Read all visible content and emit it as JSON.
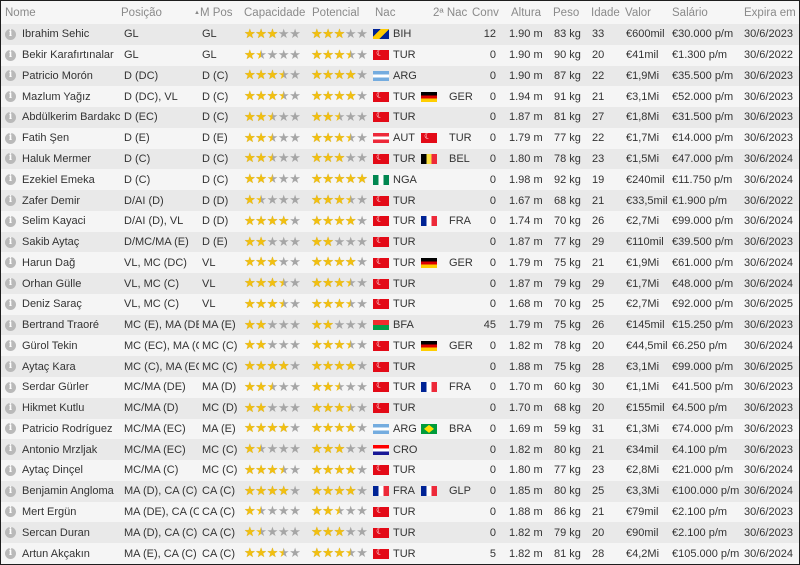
{
  "columns": {
    "nome": "Nome",
    "posicao": "Posição",
    "sort_arrow": "▲",
    "mpos": "M Pos",
    "capacidade": "Capacidade",
    "potencial": "Potencial",
    "nac": "Nac",
    "nac2": "2ª Nac",
    "conv": "Conv",
    "altura": "Altura",
    "peso": "Peso",
    "idade": "Idade",
    "valor": "Valor",
    "salario": "Salário",
    "expira": "Expira em"
  },
  "colors": {
    "star_filled": "#f2c010",
    "star_empty": "#a6a6a6"
  },
  "players": [
    {
      "nome": "Ibrahim Sehic",
      "posicao": "GL",
      "mpos": "GL",
      "capacidade": 3,
      "potencial": 3,
      "nac": "BIH",
      "nac_flag": "BIH",
      "nac2": "",
      "nac2_flag": "",
      "conv": "12",
      "altura": "1.90 m",
      "peso": "83 kg",
      "idade": "33",
      "valor": "€600mil",
      "salario": "€30.000 p/m",
      "expira": "30/6/2023"
    },
    {
      "nome": "Bekir Karafırtınalar",
      "posicao": "GL",
      "mpos": "GL",
      "capacidade": 1.5,
      "potencial": 3.5,
      "nac": "TUR",
      "nac_flag": "TUR",
      "nac2": "",
      "nac2_flag": "",
      "conv": "0",
      "altura": "1.90 m",
      "peso": "90 kg",
      "idade": "20",
      "valor": "€41mil",
      "salario": "€1.300 p/m",
      "expira": "30/6/2022"
    },
    {
      "nome": "Patricio Morón",
      "posicao": "D (DC)",
      "mpos": "D (C)",
      "capacidade": 3.5,
      "potencial": 4,
      "nac": "ARG",
      "nac_flag": "ARG",
      "nac2": "",
      "nac2_flag": "",
      "conv": "0",
      "altura": "1.90 m",
      "peso": "87 kg",
      "idade": "22",
      "valor": "€1,9Mi",
      "salario": "€35.500 p/m",
      "expira": "30/6/2023"
    },
    {
      "nome": "Mazlum Yağız",
      "posicao": "D (DC), VL",
      "mpos": "D (C)",
      "capacidade": 3.5,
      "potencial": 4,
      "nac": "TUR",
      "nac_flag": "TUR",
      "nac2": "GER",
      "nac2_flag": "GER",
      "conv": "0",
      "altura": "1.94 m",
      "peso": "91 kg",
      "idade": "21",
      "valor": "€3,1Mi",
      "salario": "€52.000 p/m",
      "expira": "30/6/2023"
    },
    {
      "nome": "Abdülkerim Bardakcı",
      "posicao": "D (EC)",
      "mpos": "D (C)",
      "capacidade": 2.5,
      "potencial": 2.5,
      "nac": "TUR",
      "nac_flag": "TUR",
      "nac2": "",
      "nac2_flag": "",
      "conv": "0",
      "altura": "1.87 m",
      "peso": "81 kg",
      "idade": "27",
      "valor": "€1,8Mi",
      "salario": "€31.500 p/m",
      "expira": "30/6/2023"
    },
    {
      "nome": "Fatih Şen",
      "posicao": "D (E)",
      "mpos": "D (E)",
      "capacidade": 2.5,
      "potencial": 3.5,
      "nac": "AUT",
      "nac_flag": "AUT",
      "nac2": "TUR",
      "nac2_flag": "TUR",
      "conv": "0",
      "altura": "1.79 m",
      "peso": "77 kg",
      "idade": "22",
      "valor": "€1,7Mi",
      "salario": "€14.000 p/m",
      "expira": "30/6/2023"
    },
    {
      "nome": "Haluk Mermer",
      "posicao": "D (C)",
      "mpos": "D (C)",
      "capacidade": 2.5,
      "potencial": 3,
      "nac": "TUR",
      "nac_flag": "TUR",
      "nac2": "BEL",
      "nac2_flag": "BEL",
      "conv": "0",
      "altura": "1.80 m",
      "peso": "78 kg",
      "idade": "23",
      "valor": "€1,5Mi",
      "salario": "€47.000 p/m",
      "expira": "30/6/2024"
    },
    {
      "nome": "Ezekiel Emeka",
      "posicao": "D (C)",
      "mpos": "D (C)",
      "capacidade": 2.5,
      "potencial": 5,
      "nac": "NGA",
      "nac_flag": "NGA",
      "nac2": "",
      "nac2_flag": "",
      "conv": "0",
      "altura": "1.98 m",
      "peso": "92 kg",
      "idade": "19",
      "valor": "€240mil",
      "salario": "€11.750 p/m",
      "expira": "30/6/2024"
    },
    {
      "nome": "Zafer Demir",
      "posicao": "D/AI (D)",
      "mpos": "D (D)",
      "capacidade": 1.5,
      "potencial": 3.5,
      "nac": "TUR",
      "nac_flag": "TUR",
      "nac2": "",
      "nac2_flag": "",
      "conv": "0",
      "altura": "1.67 m",
      "peso": "68 kg",
      "idade": "21",
      "valor": "€33,5mil",
      "salario": "€1.900 p/m",
      "expira": "30/6/2022"
    },
    {
      "nome": "Selim Kayaci",
      "posicao": "D/AI (D), VL",
      "mpos": "D (D)",
      "capacidade": 4,
      "potencial": 4,
      "nac": "TUR",
      "nac_flag": "TUR",
      "nac2": "FRA",
      "nac2_flag": "FRA",
      "conv": "0",
      "altura": "1.74 m",
      "peso": "70 kg",
      "idade": "26",
      "valor": "€2,7Mi",
      "salario": "€99.000 p/m",
      "expira": "30/6/2024"
    },
    {
      "nome": "Sakib Aytaç",
      "posicao": "D/MC/MA (E)",
      "mpos": "D (E)",
      "capacidade": 2,
      "potencial": 2,
      "nac": "TUR",
      "nac_flag": "TUR",
      "nac2": "",
      "nac2_flag": "",
      "conv": "0",
      "altura": "1.87 m",
      "peso": "77 kg",
      "idade": "29",
      "valor": "€110mil",
      "salario": "€39.500 p/m",
      "expira": "30/6/2023"
    },
    {
      "nome": "Harun Dağ",
      "posicao": "VL, MC (DC)",
      "mpos": "VL",
      "capacidade": 3,
      "potencial": 4,
      "nac": "TUR",
      "nac_flag": "TUR",
      "nac2": "GER",
      "nac2_flag": "GER",
      "conv": "0",
      "altura": "1.79 m",
      "peso": "75 kg",
      "idade": "21",
      "valor": "€1,9Mi",
      "salario": "€61.000 p/m",
      "expira": "30/6/2024"
    },
    {
      "nome": "Orhan Gülle",
      "posicao": "VL, MC (C)",
      "mpos": "VL",
      "capacidade": 3.5,
      "potencial": 3.5,
      "nac": "TUR",
      "nac_flag": "TUR",
      "nac2": "",
      "nac2_flag": "",
      "conv": "0",
      "altura": "1.87 m",
      "peso": "79 kg",
      "idade": "29",
      "valor": "€1,7Mi",
      "salario": "€48.000 p/m",
      "expira": "30/6/2024"
    },
    {
      "nome": "Deniz Saraç",
      "posicao": "VL, MC (C)",
      "mpos": "VL",
      "capacidade": 3.5,
      "potencial": 3.5,
      "nac": "TUR",
      "nac_flag": "TUR",
      "nac2": "",
      "nac2_flag": "",
      "conv": "0",
      "altura": "1.68 m",
      "peso": "70 kg",
      "idade": "25",
      "valor": "€2,7Mi",
      "salario": "€92.000 p/m",
      "expira": "30/6/2025"
    },
    {
      "nome": "Bertrand Traoré",
      "posicao": "MC (E), MA (DE)",
      "mpos": "MA (E)",
      "capacidade": 2,
      "potencial": 2,
      "nac": "BFA",
      "nac_flag": "BFA",
      "nac2": "",
      "nac2_flag": "",
      "conv": "45",
      "altura": "1.79 m",
      "peso": "75 kg",
      "idade": "26",
      "valor": "€145mil",
      "salario": "€15.250 p/m",
      "expira": "30/6/2023"
    },
    {
      "nome": "Gürol Tekin",
      "posicao": "MC (EC), MA (C)",
      "mpos": "MC (C)",
      "capacidade": 2,
      "potencial": 3.5,
      "nac": "TUR",
      "nac_flag": "TUR",
      "nac2": "GER",
      "nac2_flag": "GER",
      "conv": "0",
      "altura": "1.82 m",
      "peso": "78 kg",
      "idade": "20",
      "valor": "€44,5mil",
      "salario": "€6.250 p/m",
      "expira": "30/6/2024"
    },
    {
      "nome": "Aytaç Kara",
      "posicao": "MC (C), MA (EC)",
      "mpos": "MC (C)",
      "capacidade": 4,
      "potencial": 4,
      "nac": "TUR",
      "nac_flag": "TUR",
      "nac2": "",
      "nac2_flag": "",
      "conv": "0",
      "altura": "1.88 m",
      "peso": "75 kg",
      "idade": "28",
      "valor": "€3,1Mi",
      "salario": "€99.000 p/m",
      "expira": "30/6/2025"
    },
    {
      "nome": "Serdar Gürler",
      "posicao": "MC/MA (DE)",
      "mpos": "MA (D)",
      "capacidade": 2.5,
      "potencial": 2.5,
      "nac": "TUR",
      "nac_flag": "TUR",
      "nac2": "FRA",
      "nac2_flag": "FRA",
      "conv": "0",
      "altura": "1.70 m",
      "peso": "60 kg",
      "idade": "30",
      "valor": "€1,1Mi",
      "salario": "€41.500 p/m",
      "expira": "30/6/2023"
    },
    {
      "nome": "Hikmet Kutlu",
      "posicao": "MC/MA (D)",
      "mpos": "MC (D)",
      "capacidade": 2,
      "potencial": 3.5,
      "nac": "TUR",
      "nac_flag": "TUR",
      "nac2": "",
      "nac2_flag": "",
      "conv": "0",
      "altura": "1.70 m",
      "peso": "68 kg",
      "idade": "20",
      "valor": "€155mil",
      "salario": "€4.500 p/m",
      "expira": "30/6/2023"
    },
    {
      "nome": "Patricio Rodríguez",
      "posicao": "MC/MA (EC)",
      "mpos": "MA (E)",
      "capacidade": 4,
      "potencial": 4,
      "nac": "ARG",
      "nac_flag": "ARG",
      "nac2": "BRA",
      "nac2_flag": "BRA",
      "conv": "0",
      "altura": "1.69 m",
      "peso": "59 kg",
      "idade": "31",
      "valor": "€1,3Mi",
      "salario": "€74.000 p/m",
      "expira": "30/6/2023"
    },
    {
      "nome": "Antonio Mrzljak",
      "posicao": "MC/MA (EC)",
      "mpos": "MC (C)",
      "capacidade": 1.5,
      "potencial": 3,
      "nac": "CRO",
      "nac_flag": "CRO",
      "nac2": "",
      "nac2_flag": "",
      "conv": "0",
      "altura": "1.82 m",
      "peso": "80 kg",
      "idade": "21",
      "valor": "€34mil",
      "salario": "€4.100 p/m",
      "expira": "30/6/2023"
    },
    {
      "nome": "Aytaç Dinçel",
      "posicao": "MC/MA (C)",
      "mpos": "MC (C)",
      "capacidade": 3.5,
      "potencial": 4,
      "nac": "TUR",
      "nac_flag": "TUR",
      "nac2": "",
      "nac2_flag": "",
      "conv": "0",
      "altura": "1.80 m",
      "peso": "77 kg",
      "idade": "23",
      "valor": "€2,8Mi",
      "salario": "€21.000 p/m",
      "expira": "30/6/2024"
    },
    {
      "nome": "Benjamin Angloma",
      "posicao": "MA (D), CA (C)",
      "mpos": "CA (C)",
      "capacidade": 4,
      "potencial": 4,
      "nac": "FRA",
      "nac_flag": "FRA",
      "nac2": "GLP",
      "nac2_flag": "FRA",
      "conv": "0",
      "altura": "1.85 m",
      "peso": "80 kg",
      "idade": "25",
      "valor": "€3,3Mi",
      "salario": "€100.000 p/m",
      "expira": "30/6/2024"
    },
    {
      "nome": "Mert Ergün",
      "posicao": "MA (DE), CA (C)",
      "mpos": "CA (C)",
      "capacidade": 1.5,
      "potencial": 2.5,
      "nac": "TUR",
      "nac_flag": "TUR",
      "nac2": "",
      "nac2_flag": "",
      "conv": "0",
      "altura": "1.88 m",
      "peso": "86 kg",
      "idade": "21",
      "valor": "€79mil",
      "salario": "€2.100 p/m",
      "expira": "30/6/2023"
    },
    {
      "nome": "Sercan Duran",
      "posicao": "MA (D), CA (C)",
      "mpos": "CA (C)",
      "capacidade": 1.5,
      "potencial": 3,
      "nac": "TUR",
      "nac_flag": "TUR",
      "nac2": "",
      "nac2_flag": "",
      "conv": "0",
      "altura": "1.82 m",
      "peso": "79 kg",
      "idade": "20",
      "valor": "€90mil",
      "salario": "€2.100 p/m",
      "expira": "30/6/2023"
    },
    {
      "nome": "Artun Akçakın",
      "posicao": "MA (E), CA (C)",
      "mpos": "CA (C)",
      "capacidade": 3.5,
      "potencial": 3.5,
      "nac": "TUR",
      "nac_flag": "TUR",
      "nac2": "",
      "nac2_flag": "",
      "conv": "5",
      "altura": "1.82 m",
      "peso": "81 kg",
      "idade": "28",
      "valor": "€4,2Mi",
      "salario": "€105.000 p/m",
      "expira": "30/6/2024"
    }
  ]
}
